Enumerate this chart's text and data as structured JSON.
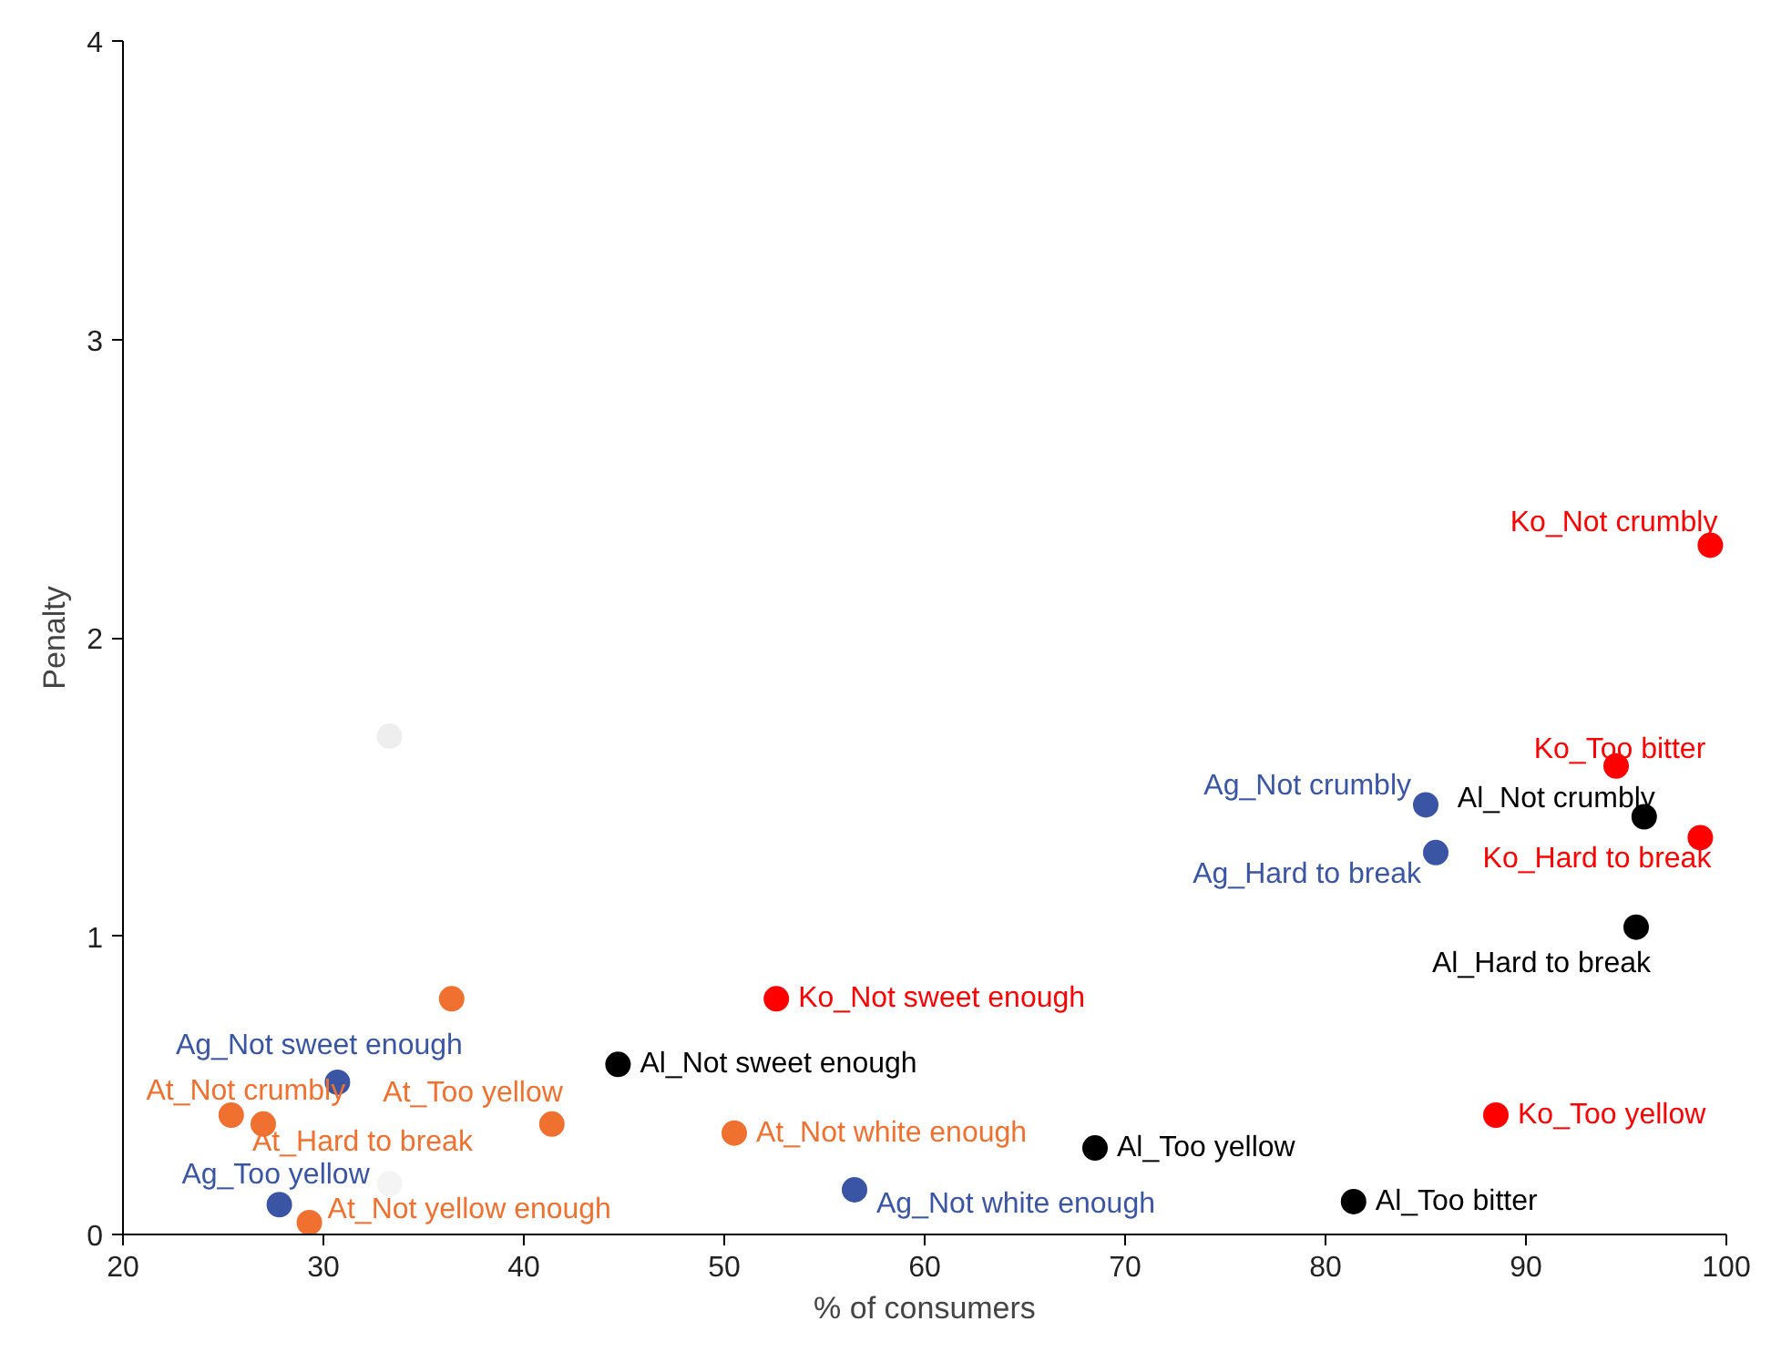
{
  "chart_data": {
    "type": "scatter",
    "xlabel": "% of consumers",
    "ylabel": "Penalty",
    "xlim": [
      20,
      100
    ],
    "ylim": [
      0,
      4
    ],
    "xticks": [
      20,
      30,
      40,
      50,
      60,
      70,
      80,
      90,
      100
    ],
    "yticks": [
      0,
      1,
      2,
      3,
      4
    ],
    "grid": false,
    "marker": "circle",
    "series": [
      {
        "color": "#ff0000",
        "x": [
          99.2,
          94.5,
          98.7,
          52.6,
          88.5
        ],
        "values": [
          2.31,
          1.57,
          1.33,
          0.79,
          0.4
        ]
      },
      {
        "color": "#000000",
        "x": [
          95.9,
          95.5,
          44.7,
          68.5,
          81.4
        ],
        "values": [
          1.4,
          1.03,
          0.57,
          0.29,
          0.11
        ]
      },
      {
        "color": "#3a55a4",
        "x": [
          85.0,
          85.5,
          30.7,
          27.8,
          56.5
        ],
        "values": [
          1.44,
          1.28,
          0.51,
          0.1,
          0.15
        ]
      },
      {
        "color": "#f07030",
        "x": [
          25.4,
          27.0,
          41.4,
          50.5,
          29.3,
          36.4
        ],
        "values": [
          0.4,
          0.37,
          0.37,
          0.34,
          0.04,
          0.79
        ]
      },
      {
        "color": "#eeeeee",
        "x": [
          33.3
        ],
        "values": [
          1.67
        ]
      },
      {
        "color": "#f4f4f4",
        "x": [
          33.3
        ],
        "values": [
          0.17
        ]
      }
    ],
    "annotations": [
      {
        "text": "Ko_Not crumbly",
        "x": 99.2,
        "y": 2.31
      },
      {
        "text": "Ko_Too bitter",
        "x": 94.5,
        "y": 1.57
      },
      {
        "text": "Ko_Hard to break",
        "x": 98.7,
        "y": 1.33
      },
      {
        "text": "Ko_Not sweet enough",
        "x": 52.6,
        "y": 0.79
      },
      {
        "text": "Ko_Too yellow",
        "x": 88.5,
        "y": 0.4
      },
      {
        "text": "Al_Not crumbly",
        "x": 95.9,
        "y": 1.4
      },
      {
        "text": "Al_Hard to break",
        "x": 95.5,
        "y": 1.03
      },
      {
        "text": "Al_Not sweet enough",
        "x": 44.7,
        "y": 0.57
      },
      {
        "text": "Al_Too yellow",
        "x": 68.5,
        "y": 0.29
      },
      {
        "text": "Al_Too bitter",
        "x": 81.4,
        "y": 0.11
      },
      {
        "text": "Ag_Not crumbly",
        "x": 85.0,
        "y": 1.44
      },
      {
        "text": "Ag_Hard to break",
        "x": 85.5,
        "y": 1.28
      },
      {
        "text": "Ag_Not sweet enough",
        "x": 30.7,
        "y": 0.51
      },
      {
        "text": "Ag_Too yellow",
        "x": 27.8,
        "y": 0.1
      },
      {
        "text": "Ag_Not white enough",
        "x": 56.5,
        "y": 0.15
      },
      {
        "text": "At_Not crumbly",
        "x": 25.4,
        "y": 0.4
      },
      {
        "text": "At_Hard to break",
        "x": 27.0,
        "y": 0.37
      },
      {
        "text": "At_Too yellow",
        "x": 41.4,
        "y": 0.37
      },
      {
        "text": "At_Not white enough",
        "x": 50.5,
        "y": 0.34
      },
      {
        "text": "At_Not yellow enough",
        "x": 29.3,
        "y": 0.04
      }
    ]
  }
}
